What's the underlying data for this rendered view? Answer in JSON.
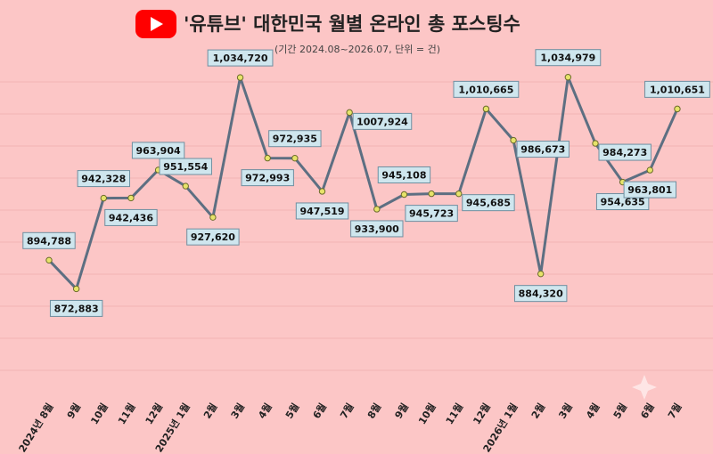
{
  "colors": {
    "background": "#fcc6c6",
    "line": "#5d6f82",
    "marker": "#e7e36a",
    "label_box": "#cfe6ee",
    "youtube_red": "#ff0000"
  },
  "icon": "youtube-logo-icon",
  "chart_data": {
    "type": "line",
    "title": "'유튜브' 대한민국 월별 온라인 총 포스팅수",
    "subtitle": "(기간 2024.08~2026.07, 단위 = 건)",
    "categories": [
      "2024년 8월",
      "9월",
      "10월",
      "11월",
      "12월",
      "2025년 1월",
      "2월",
      "3월",
      "4월",
      "5월",
      "6월",
      "7월",
      "8월",
      "9월",
      "10월",
      "11월",
      "12월",
      "2026년 1월",
      "2월",
      "3월",
      "4월",
      "5월",
      "6월",
      "7월"
    ],
    "series": [
      {
        "values": [
          894788,
          872883,
          942328,
          942436,
          963904,
          951554,
          927620,
          1034720,
          972993,
          972935,
          947519,
          1007924,
          933900,
          945108,
          945723,
          945685,
          1010665,
          986673,
          884320,
          1034979,
          984273,
          954635,
          963801,
          1010651
        ]
      }
    ],
    "labels": [
      "894,788",
      "872,883",
      "942,328",
      "942,436",
      "963,904",
      "951,554",
      "927,620",
      "1,034,720",
      "972,993",
      "972,935",
      "947,519",
      "1007,924",
      "933,900",
      "945,108",
      "945,723",
      "945,685",
      "1,010,665",
      "986,673",
      "884,320",
      "1,034,979",
      "984,273",
      "954,635",
      "963,801",
      "1,010,651"
    ],
    "ylim": [
      760000,
      1060000
    ],
    "grid": true,
    "legend": "none"
  }
}
